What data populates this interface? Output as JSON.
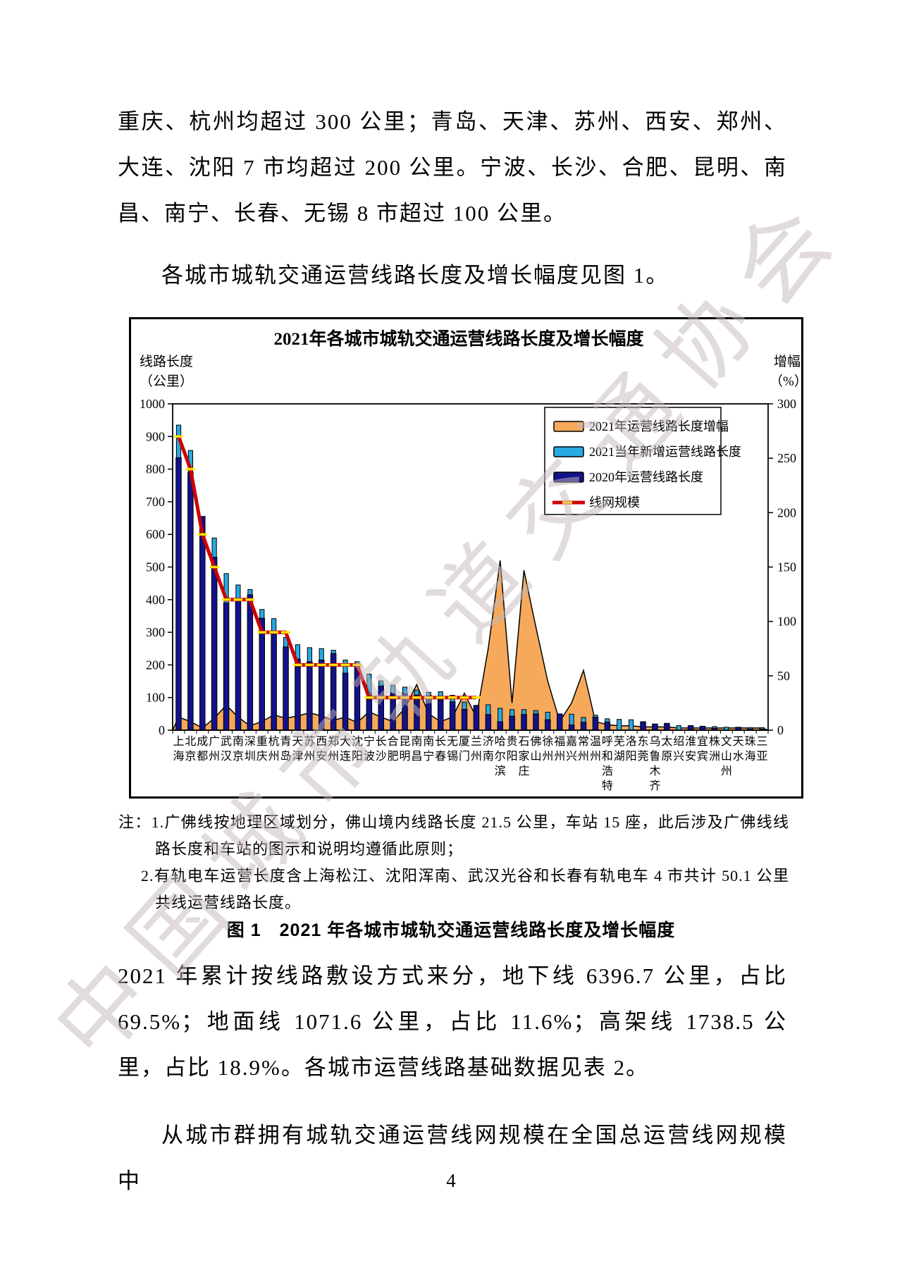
{
  "page": {
    "paragraph_1": "重庆、杭州均超过 300 公里；青岛、天津、苏州、西安、郑州、大连、沈阳 7 市均超过 200 公里。宁波、长沙、合肥、昆明、南昌、南宁、长春、无锡 8 市超过 100 公里。",
    "paragraph_2": "各城市城轨交通运营线路长度及增长幅度见图 1。",
    "paragraph_3": "2021 年累计按线路敷设方式来分，地下线 6396.7 公里，占比 69.5%；地面线 1071.6 公里，占比 11.6%；高架线 1738.5 公里，占比 18.9%。各城市运营线路基础数据见表 2。",
    "paragraph_4": "从城市群拥有城轨交通运营线网规模在全国总运营线网规模中",
    "page_number": "4",
    "watermark": "中国城市轨道交通协会"
  },
  "figure": {
    "notes": {
      "note_1": "注：1.广佛线按地理区域划分，佛山境内线路长度 21.5 公里，车站 15 座，此后涉及广佛线线路长度和车站的图示和说明均遵循此原则；",
      "note_2": "2.有轨电车运营长度含上海松江、沈阳浑南、武汉光谷和长春有轨电车 4 市共计 50.1 公里共线运营线路长度。"
    },
    "caption": "图 1　2021 年各城市城轨交通运营线路长度及增长幅度"
  },
  "chart_data": {
    "type": "combo",
    "title": "2021年各城市城轨交通运营线路长度及增长幅度",
    "left_axis": {
      "label_line1": "线路长度",
      "label_line2": "（公里）",
      "min": 0,
      "max": 1000,
      "step": 100
    },
    "right_axis": {
      "label_line1": "增幅",
      "label_line2": "（%）",
      "min": 0,
      "max": 300,
      "step": 50
    },
    "grid": false,
    "legend_position": "top-right-inside",
    "categories": [
      "上海",
      "北京",
      "成都",
      "广州",
      "武汉",
      "南京",
      "深圳",
      "重庆",
      "杭州",
      "青岛",
      "天津",
      "苏州",
      "西安",
      "郑州",
      "大连",
      "沈阳",
      "宁波",
      "长沙",
      "合肥",
      "昆明",
      "南昌",
      "南宁",
      "长春",
      "无锡",
      "厦门",
      "兰州",
      "济南",
      "哈尔滨",
      "贵阳",
      "石家庄",
      "佛山",
      "徐州",
      "福州",
      "嘉兴",
      "常州",
      "温州",
      "呼和浩特",
      "芜湖",
      "洛阳",
      "东莞",
      "乌鲁木齐",
      "太原",
      "绍兴",
      "淮安",
      "宜宾",
      "株洲",
      "文山州",
      "天水",
      "珠海",
      "三亚"
    ],
    "series": [
      {
        "name": "2021年运营线路长度增幅",
        "type": "area",
        "axis": "right",
        "color": "#F6A95B",
        "values": [
          12,
          8,
          2,
          11,
          23,
          12,
          4,
          8,
          14,
          11,
          13,
          16,
          13,
          9,
          12,
          7,
          17,
          12,
          8,
          20,
          42,
          15,
          8,
          12,
          34,
          12,
          75,
          156,
          25,
          147,
          95,
          45,
          8,
          25,
          55,
          8,
          5,
          4,
          4,
          3,
          3,
          3,
          2,
          2,
          2,
          2,
          2,
          2,
          2,
          2
        ]
      },
      {
        "name": "2021当年新增运营线路长度",
        "type": "bar-stacked-top",
        "axis": "left",
        "color": "#29A9E1",
        "values": [
          100,
          67,
          0,
          59,
          90,
          45,
          16,
          27,
          42,
          29,
          44,
          43,
          35,
          10,
          40,
          15,
          77,
          16,
          26,
          20,
          15,
          10,
          25,
          20,
          22,
          0,
          30,
          41,
          20,
          15,
          10,
          23,
          0,
          33,
          15,
          6,
          10,
          33,
          32,
          0,
          0,
          0,
          14,
          0,
          0,
          5,
          9,
          0,
          4,
          4
        ]
      },
      {
        "name": "2020年运营线路长度",
        "type": "bar",
        "axis": "left",
        "color": "#12128B",
        "values": [
          835,
          790,
          655,
          530,
          390,
          400,
          415,
          343,
          300,
          255,
          218,
          210,
          215,
          235,
          175,
          195,
          95,
          135,
          112,
          112,
          108,
          106,
          93,
          87,
          64,
          76,
          48,
          26,
          43,
          48,
          50,
          32,
          50,
          16,
          24,
          40,
          25,
          0,
          0,
          26,
          19,
          21,
          0,
          14,
          12,
          6,
          0,
          9,
          4,
          4
        ]
      },
      {
        "name": "线网规模",
        "type": "line",
        "axis": "left",
        "color": "#CC0000",
        "marker_color": "#FFE400",
        "values": [
          900,
          800,
          600,
          500,
          400,
          400,
          400,
          300,
          300,
          300,
          200,
          200,
          200,
          200,
          200,
          200,
          100,
          100,
          100,
          100,
          100,
          100,
          100,
          100,
          100,
          100,
          null,
          null,
          null,
          null,
          null,
          null,
          null,
          null,
          null,
          null,
          null,
          null,
          null,
          null,
          null,
          null,
          null,
          null,
          null,
          null,
          null,
          null,
          null,
          null
        ]
      }
    ]
  }
}
